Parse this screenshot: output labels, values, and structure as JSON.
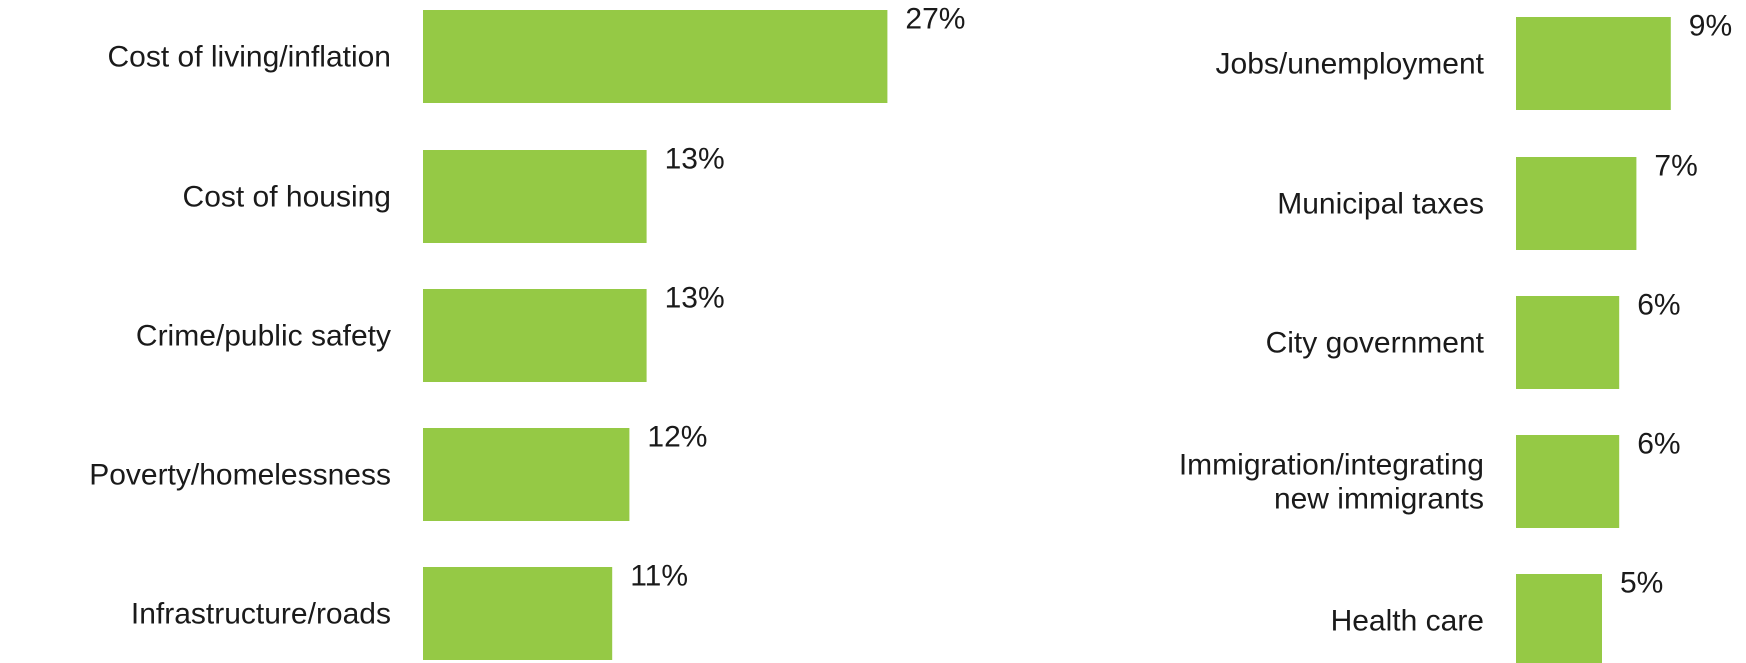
{
  "chart_data": [
    {
      "type": "bar",
      "orientation": "horizontal",
      "title": "",
      "xlabel": "",
      "ylabel": "",
      "value_suffix": "%",
      "grid": false,
      "categories": [
        "Cost of living/inflation",
        "Cost of housing",
        "Crime/public safety",
        "Poverty/homelessness",
        "Infrastructure/roads"
      ],
      "values": [
        27,
        13,
        13,
        12,
        11
      ],
      "color": "#95c945"
    },
    {
      "type": "bar",
      "orientation": "horizontal",
      "title": "",
      "xlabel": "",
      "ylabel": "",
      "value_suffix": "%",
      "grid": false,
      "categories": [
        "Jobs/unemployment",
        "Municipal taxes",
        "City government",
        "Immigration/integrating new immigrants",
        "Health care"
      ],
      "values": [
        9,
        7,
        6,
        6,
        5
      ],
      "color": "#95c945"
    }
  ]
}
